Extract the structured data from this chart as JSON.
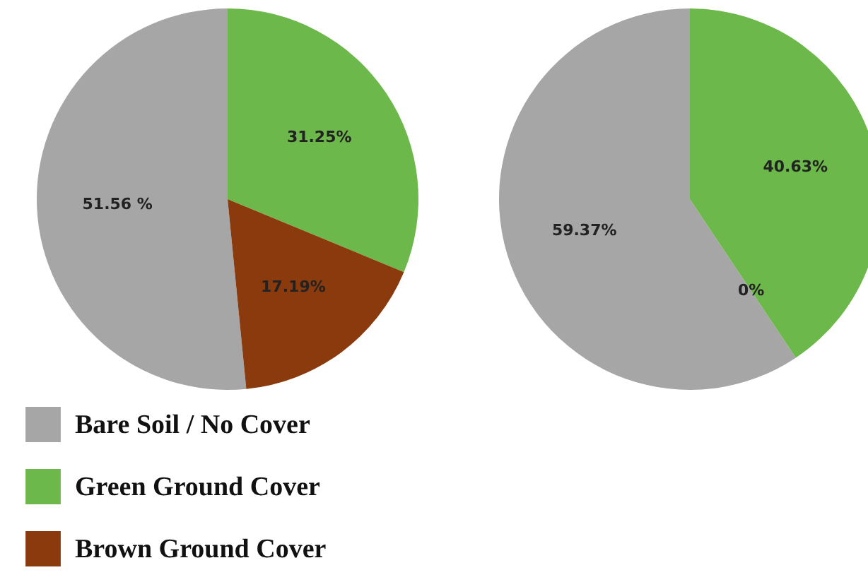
{
  "chart_data": [
    {
      "type": "pie",
      "categories": [
        "Bare Soil / No Cover",
        "Green Ground Cover",
        "Brown Ground Cover"
      ],
      "values": [
        51.56,
        31.25,
        17.19
      ],
      "colors": [
        "#a6a6a6",
        "#6cb84a",
        "#8a3a0c"
      ],
      "value_labels": [
        "51.56 %",
        "31.25%",
        "17.19%"
      ],
      "legend": "bottom left"
    },
    {
      "type": "pie",
      "categories": [
        null,
        null,
        null
      ],
      "values": [
        59.37,
        40.63,
        0
      ],
      "colors": [
        "#a6a6a6",
        "#6cb84a",
        "#8a3a0c"
      ],
      "value_labels": [
        "59.37%",
        "40.63%",
        "0%"
      ]
    }
  ]
}
